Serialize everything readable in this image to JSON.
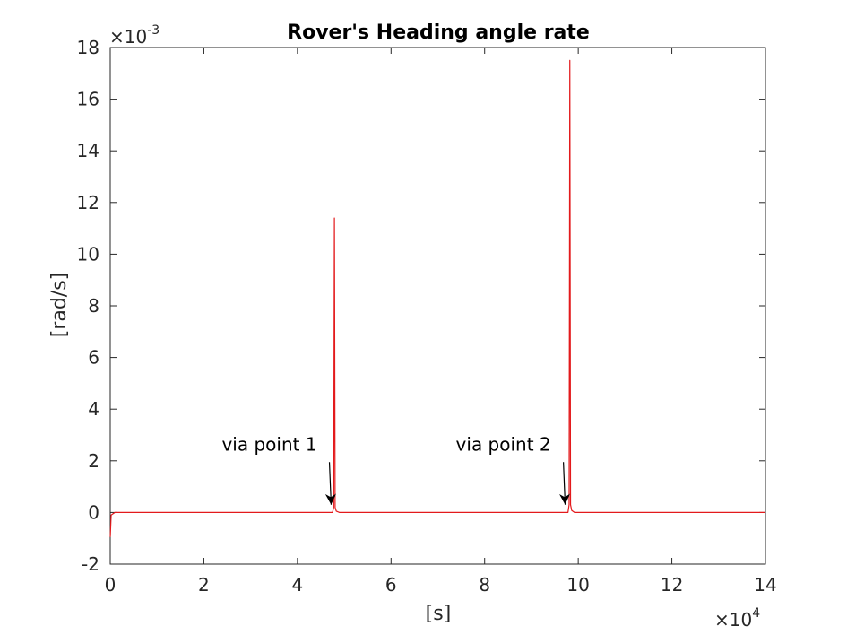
{
  "chart_data": {
    "type": "line",
    "title": "Rover's Heading angle rate",
    "xlabel": "[s]",
    "ylabel": "[rad/s]",
    "x_exponent_base": "×10",
    "x_exponent_power": "4",
    "y_exponent_base": "×10",
    "y_exponent_power": "-3",
    "xlim": [
      0,
      140000
    ],
    "ylim": [
      -0.002,
      0.018
    ],
    "xticks": [
      0,
      20000,
      40000,
      60000,
      80000,
      100000,
      120000,
      140000
    ],
    "xtick_labels": [
      "0",
      "2",
      "4",
      "6",
      "8",
      "10",
      "12",
      "14"
    ],
    "yticks": [
      -0.002,
      0,
      0.002,
      0.004,
      0.006,
      0.008,
      0.01,
      0.012,
      0.014,
      0.016,
      0.018
    ],
    "ytick_labels": [
      "-2",
      "0",
      "2",
      "4",
      "6",
      "8",
      "10",
      "12",
      "14",
      "16",
      "18"
    ],
    "grid": false,
    "series": [
      {
        "color": "#e31a1c",
        "x": [
          0,
          20,
          200,
          1000,
          47500,
          47750,
          47900,
          48050,
          48300,
          49000,
          97800,
          98050,
          98200,
          98350,
          98600,
          99200,
          140000
        ],
        "y": [
          -0.00095,
          -0.0009,
          -0.0001,
          0,
          0,
          0.0002,
          0.0114,
          0.0002,
          5e-05,
          0,
          0,
          0.0003,
          0.0175,
          0.0003,
          8e-05,
          0,
          0
        ]
      }
    ],
    "annotations": [
      {
        "text": "via point 1",
        "text_x": 34000,
        "text_y": 0.0024,
        "arrow_x": 47200,
        "arrow_y": 0.0003
      },
      {
        "text": "via point 2",
        "text_x": 84000,
        "text_y": 0.0024,
        "arrow_x": 97200,
        "arrow_y": 0.0003
      }
    ]
  }
}
